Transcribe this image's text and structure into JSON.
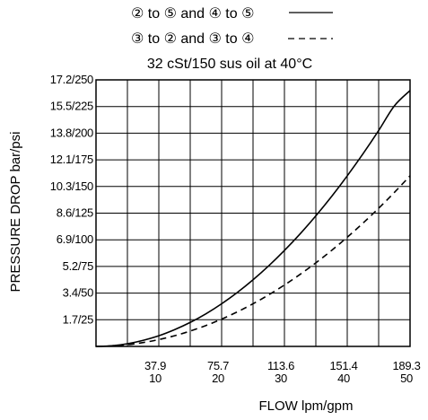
{
  "chart_data": {
    "type": "line",
    "legend": [
      {
        "text": "② to ⑤ and ④ to ⑤",
        "style": "solid"
      },
      {
        "text": "③ to ② and ③ to ④",
        "style": "dashed"
      }
    ],
    "subtitle": "32 cSt/150 sus oil at 40°C",
    "xlabel": "FLOW lpm/gpm",
    "ylabel": "PRESSURE DROP bar/psi",
    "xlim": [
      0,
      50
    ],
    "ylim": [
      0,
      250
    ],
    "x_ticks": [
      {
        "value": 10,
        "lpm": "37.9",
        "gpm": "10"
      },
      {
        "value": 20,
        "lpm": "75.7",
        "gpm": "20"
      },
      {
        "value": 30,
        "lpm": "113.6",
        "gpm": "30"
      },
      {
        "value": 40,
        "lpm": "151.4",
        "gpm": "40"
      },
      {
        "value": 50,
        "lpm": "189.3",
        "gpm": "50"
      }
    ],
    "y_ticks": [
      {
        "value": 25,
        "label": "1.7/25"
      },
      {
        "value": 50,
        "label": "3.4/50"
      },
      {
        "value": 75,
        "label": "5.2/75"
      },
      {
        "value": 100,
        "label": "6.9/100"
      },
      {
        "value": 125,
        "label": "8.6/125"
      },
      {
        "value": 150,
        "label": "10.3/150"
      },
      {
        "value": 175,
        "label": "12.1/175"
      },
      {
        "value": 200,
        "label": "13.8/200"
      },
      {
        "value": 225,
        "label": "15.5/225"
      },
      {
        "value": 250,
        "label": "17.2/250"
      }
    ],
    "grid": true,
    "series": [
      {
        "style": "solid",
        "x": [
          0,
          2.5,
          5,
          7.5,
          10,
          12.5,
          15,
          17.5,
          20,
          22.5,
          25,
          27.5,
          30,
          32.5,
          35,
          37.5,
          40,
          42.5,
          45,
          47.5,
          50
        ],
        "y": [
          0,
          0.6,
          2.5,
          5.7,
          10,
          15.7,
          22.5,
          30.6,
          40,
          50.6,
          62.5,
          75.6,
          90,
          105.6,
          122.5,
          140.6,
          160,
          180.6,
          202.5,
          225.6,
          240
        ]
      },
      {
        "style": "dashed",
        "x": [
          0,
          2.5,
          5,
          7.5,
          10,
          12.5,
          15,
          17.5,
          20,
          22.5,
          25,
          27.5,
          30,
          32.5,
          35,
          37.5,
          40,
          42.5,
          45,
          47.5,
          50
        ],
        "y": [
          0,
          0.4,
          1.6,
          3.6,
          6.4,
          10,
          14.4,
          19.6,
          25.6,
          32.4,
          40,
          48.4,
          57.6,
          67.6,
          78.4,
          90,
          102.4,
          115.6,
          129.6,
          144.4,
          160
        ]
      }
    ]
  }
}
